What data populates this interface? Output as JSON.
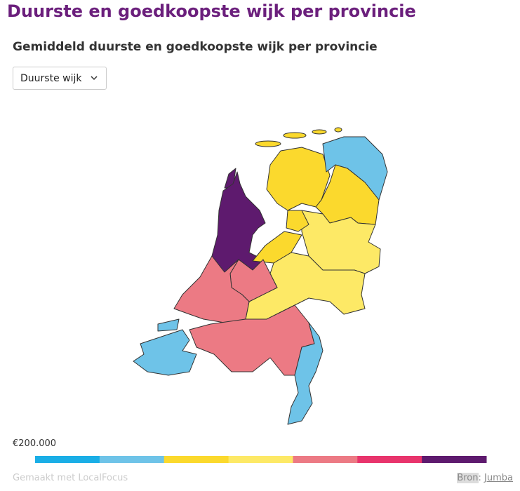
{
  "header": {
    "title": "Duurste en goedkoopste wijk per provincie",
    "subtitle": "Gemiddeld duurste en goedkoopste wijk per provincie"
  },
  "dropdown": {
    "selected": "Duurste wijk"
  },
  "legend": {
    "label": "€200.000",
    "colors": [
      "#1aaee6",
      "#6ec3e8",
      "#fbd92d",
      "#fde966",
      "#ec7a84",
      "#e8346c",
      "#5e1a6e"
    ]
  },
  "footer": {
    "credit": "Gemaakt met LocalFocus",
    "source_label": "Bron",
    "separator": ":",
    "source": "Jumba"
  }
}
